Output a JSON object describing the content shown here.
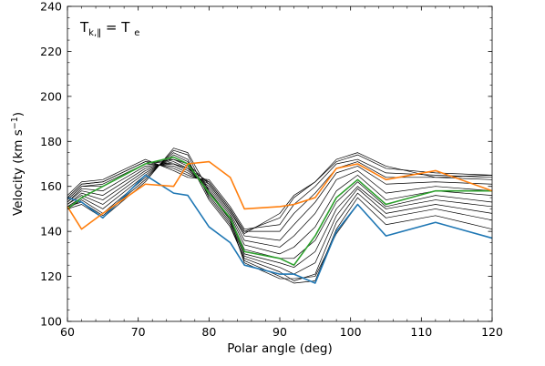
{
  "chart_data": {
    "type": "line",
    "annotation": {
      "main": "T",
      "sub": "k,‖",
      "rhs": "= T",
      "rhs_sub": "e"
    },
    "xlabel": "Polar angle (deg)",
    "ylabel_prefix": "Velocity (km s",
    "ylabel_sup": "−1",
    "ylabel_suffix": ")",
    "xlim": [
      60,
      120
    ],
    "ylim": [
      100,
      240
    ],
    "xticks": [
      60,
      70,
      80,
      90,
      100,
      110,
      120
    ],
    "yticks": [
      100,
      120,
      140,
      160,
      180,
      200,
      220,
      240
    ],
    "x_minor_step": 2,
    "y_minor_step": 5,
    "grid": false,
    "legend": "none",
    "x": [
      60,
      62,
      65,
      71,
      75,
      77,
      80,
      83,
      85,
      90,
      92,
      95,
      98,
      101,
      105,
      112,
      120
    ],
    "series": [
      {
        "color": "#000000",
        "width": 0.7,
        "values": [
          150,
          152,
          146,
          162,
          177,
          175,
          158,
          145,
          126,
          119,
          119,
          120,
          139,
          152,
          138,
          144,
          137
        ]
      },
      {
        "color": "#000000",
        "width": 0.7,
        "values": [
          151,
          153,
          147,
          163,
          176,
          174,
          155,
          143,
          127,
          120,
          117,
          118,
          141,
          155,
          143,
          147,
          141
        ]
      },
      {
        "color": "#000000",
        "width": 0.7,
        "values": [
          150,
          154,
          148,
          164,
          175,
          172,
          154,
          142,
          128,
          122,
          118,
          121,
          144,
          157,
          146,
          150,
          145
        ]
      },
      {
        "color": "#000000",
        "width": 0.7,
        "values": [
          151,
          155,
          150,
          165,
          174,
          171,
          156,
          144,
          129,
          124,
          121,
          126,
          147,
          159,
          148,
          152,
          148
        ]
      },
      {
        "color": "#000000",
        "width": 0.7,
        "values": [
          152,
          156,
          152,
          166,
          173,
          170,
          157,
          145,
          130,
          126,
          124,
          131,
          150,
          160,
          150,
          154,
          151
        ]
      },
      {
        "color": "#000000",
        "width": 0.7,
        "values": [
          152,
          157,
          154,
          167,
          172,
          169,
          158,
          146,
          132,
          128,
          128,
          136,
          153,
          162,
          151,
          156,
          153
        ]
      },
      {
        "color": "#000000",
        "width": 0.7,
        "values": [
          153,
          158,
          156,
          168,
          171,
          168,
          159,
          147,
          134,
          130,
          133,
          142,
          158,
          165,
          154,
          158,
          156
        ]
      },
      {
        "color": "#000000",
        "width": 0.7,
        "values": [
          153,
          159,
          158,
          169,
          170,
          167,
          160,
          148,
          136,
          133,
          138,
          148,
          163,
          167,
          157,
          160,
          158
        ]
      },
      {
        "color": "#000000",
        "width": 0.7,
        "values": [
          154,
          160,
          160,
          170,
          169,
          166,
          161,
          149,
          138,
          136,
          143,
          153,
          166,
          169,
          161,
          162,
          161
        ]
      },
      {
        "color": "#000000",
        "width": 0.7,
        "values": [
          155,
          161,
          162,
          171,
          168,
          165,
          162,
          150,
          140,
          140,
          148,
          157,
          168,
          171,
          164,
          164,
          163
        ]
      },
      {
        "color": "#000000",
        "width": 0.7,
        "values": [
          156,
          162,
          163,
          172,
          167,
          164,
          163,
          151,
          141,
          143,
          152,
          160,
          170,
          172,
          166,
          165,
          164
        ]
      },
      {
        "color": "#000000",
        "width": 0.7,
        "values": [
          155,
          161,
          162,
          171,
          170,
          168,
          162,
          150,
          140,
          146,
          155,
          162,
          171,
          174,
          168,
          166,
          165
        ]
      },
      {
        "color": "#000000",
        "width": 0.7,
        "values": [
          154,
          160,
          161,
          170,
          172,
          170,
          161,
          149,
          139,
          148,
          156,
          162,
          172,
          175,
          169,
          164,
          165
        ]
      },
      {
        "color": "#1f77b4",
        "width": 1.6,
        "values": [
          155,
          153,
          146,
          165,
          157,
          156,
          142,
          135,
          125,
          121,
          121,
          117,
          140,
          152,
          138,
          144,
          137
        ]
      },
      {
        "color": "#2ca02c",
        "width": 1.6,
        "values": [
          150,
          155,
          160,
          170,
          173,
          170,
          157,
          146,
          131,
          128,
          125,
          138,
          155,
          163,
          152,
          158,
          158
        ]
      },
      {
        "color": "#ff7f0e",
        "width": 1.6,
        "values": [
          151,
          141,
          148,
          161,
          160,
          170,
          171,
          164,
          150,
          151,
          152,
          155,
          168,
          170,
          163,
          167,
          158
        ]
      }
    ]
  }
}
